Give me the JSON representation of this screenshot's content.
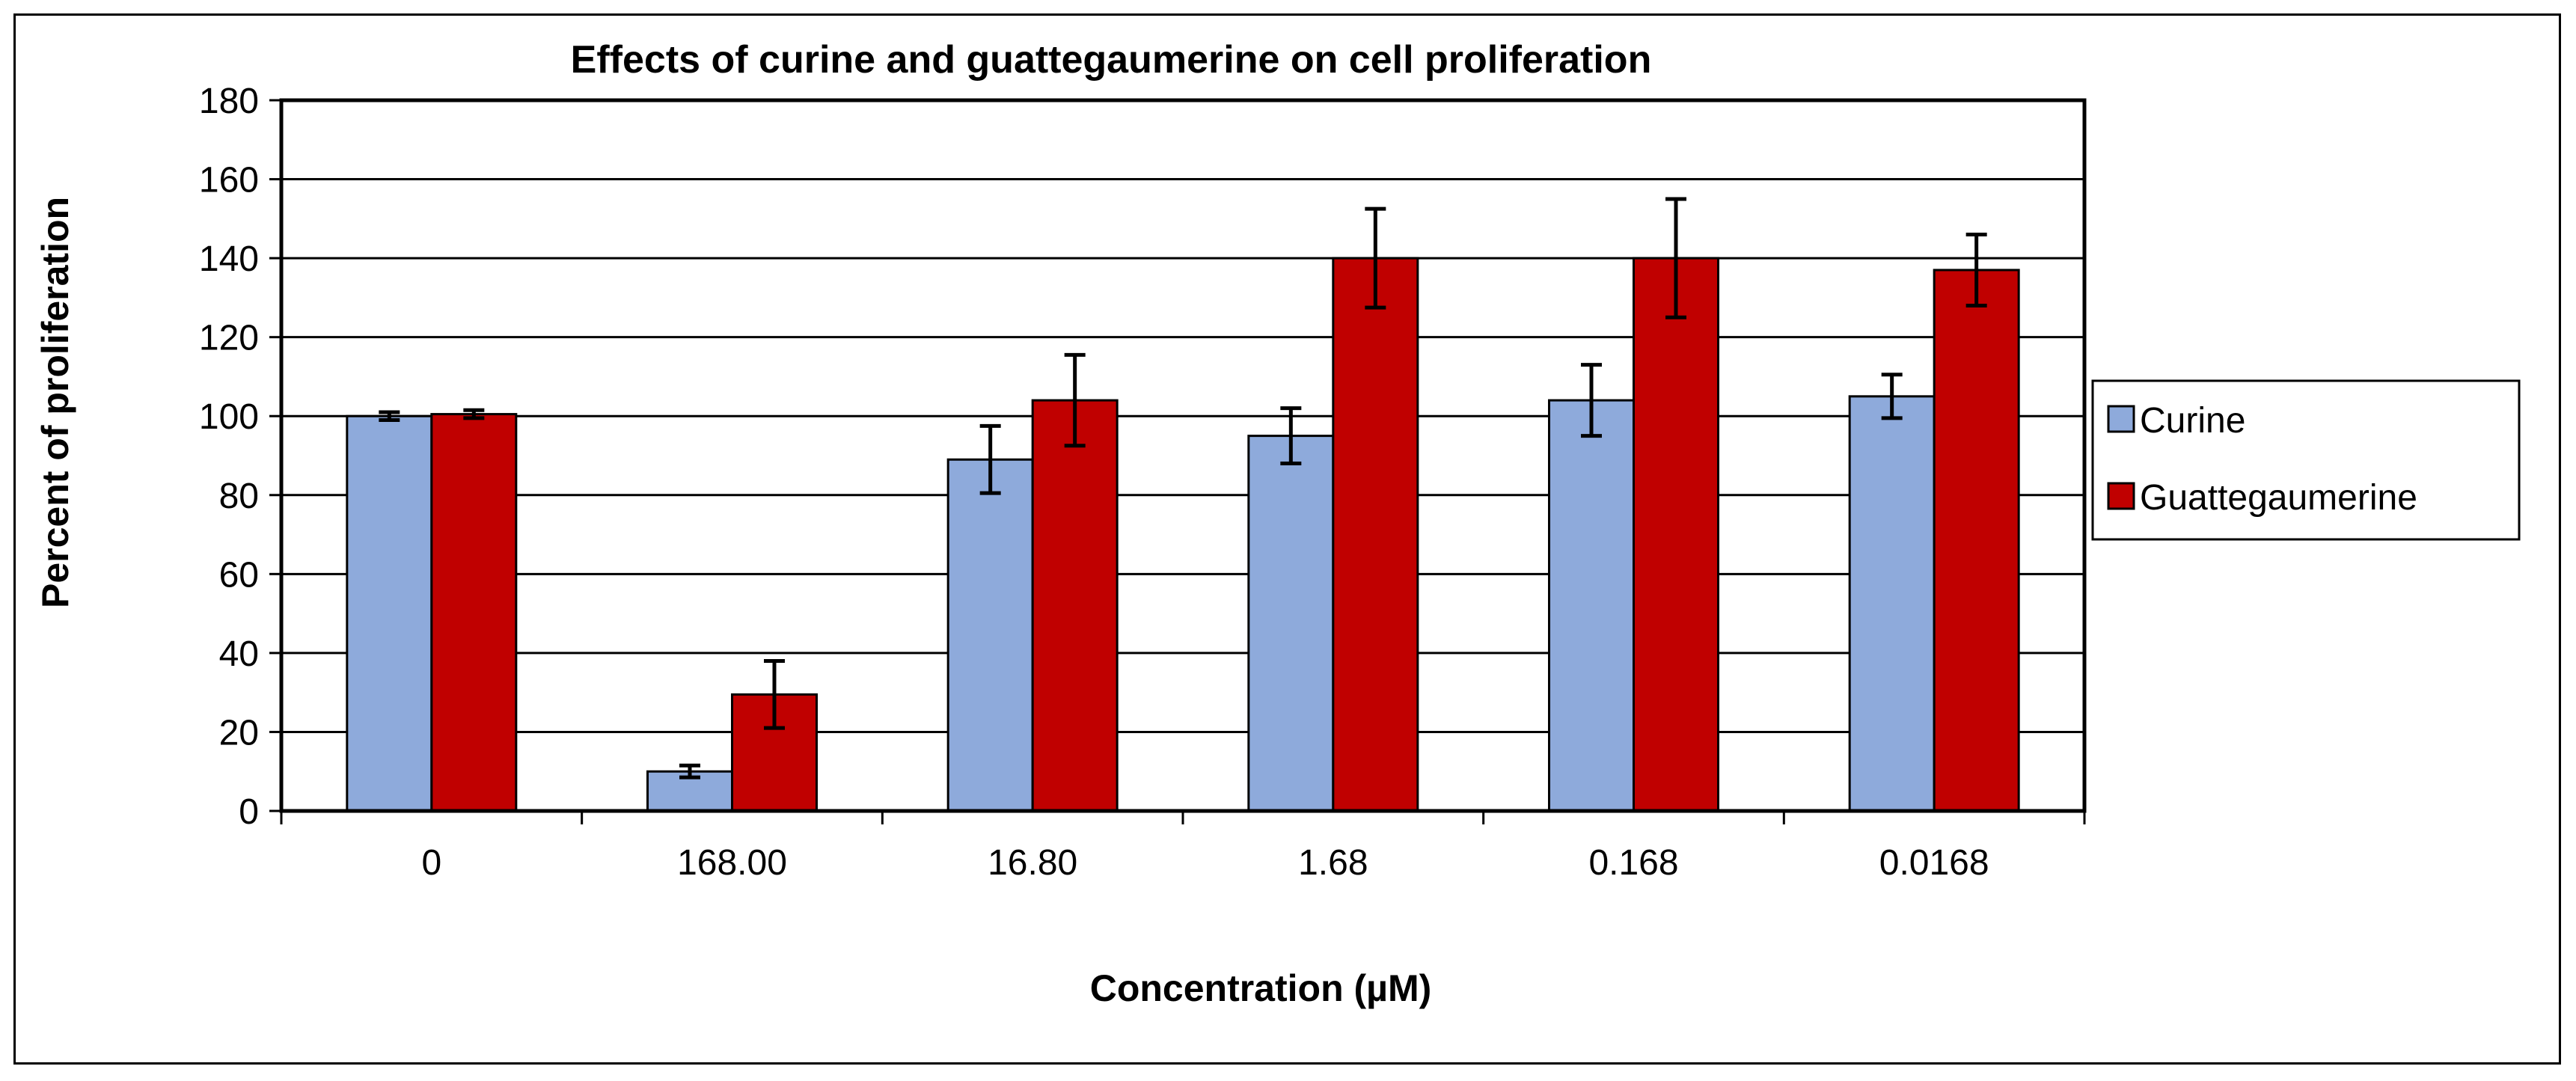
{
  "chart_data": {
    "type": "bar",
    "title": "Effects of curine and guattegaumerine on cell proliferation",
    "xlabel": "Concentration (µM)",
    "ylabel": "Percent of proliferation",
    "categories": [
      "0",
      "168.00",
      "16.80",
      "1.68",
      "0.168",
      "0.0168"
    ],
    "ylim": [
      0,
      180
    ],
    "yticks": [
      0,
      20,
      40,
      60,
      80,
      100,
      120,
      140,
      160,
      180
    ],
    "grid": true,
    "legend_position": "right",
    "series": [
      {
        "name": "Curine",
        "color": "#8eaadb",
        "values": [
          100,
          10,
          89,
          95,
          104,
          105
        ],
        "errors": [
          1,
          1.5,
          8.5,
          7,
          9,
          5.5
        ]
      },
      {
        "name": "Guattegaumerine",
        "color": "#c00000",
        "values": [
          100.5,
          29.5,
          104,
          140,
          140,
          137
        ],
        "errors": [
          1,
          8.5,
          11.5,
          12.5,
          15,
          9
        ]
      }
    ]
  }
}
